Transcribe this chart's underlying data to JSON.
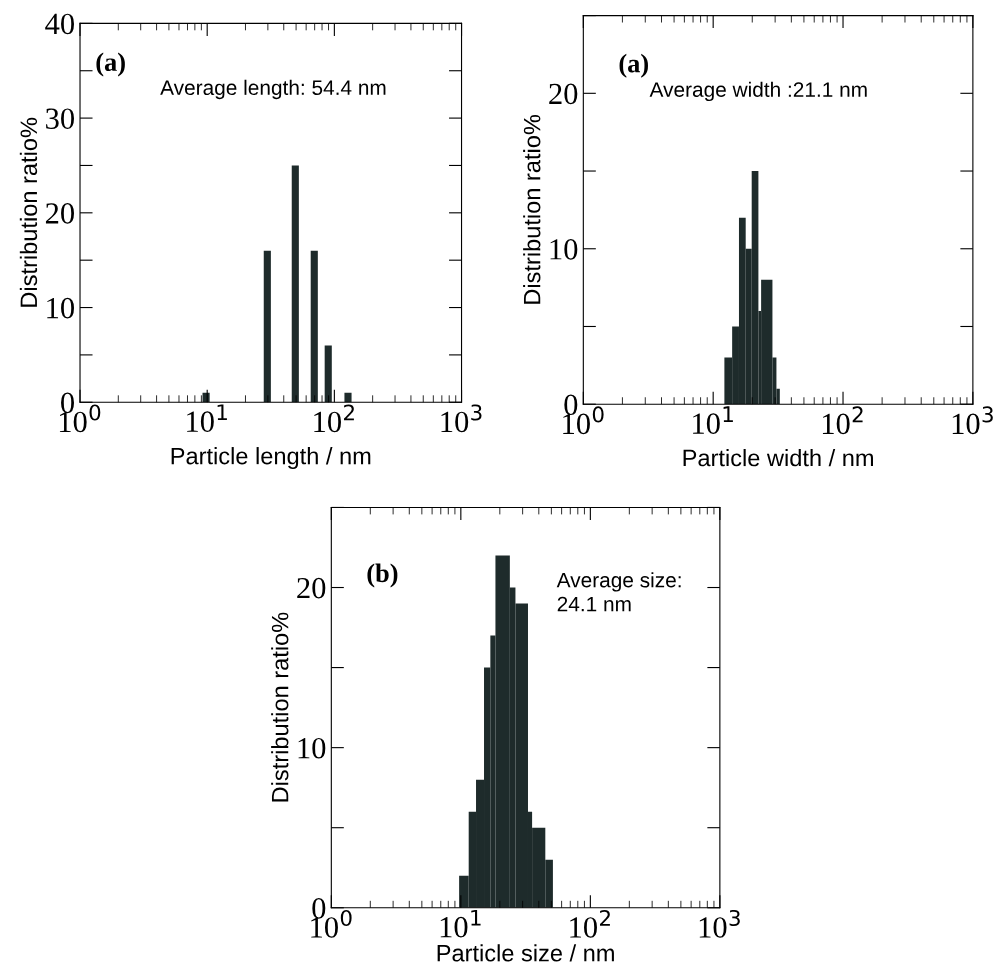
{
  "chart_data": [
    {
      "type": "bar",
      "x": [
        9.8,
        29.7,
        49.3,
        69.5,
        89.5,
        128
      ],
      "values": [
        1,
        16,
        25,
        16,
        6,
        1
      ],
      "color": "#1e2b2b",
      "xlabel": "Particle length / nm",
      "ylabel": "Distribution ratio%",
      "log": "x",
      "xlim": [
        1,
        1000
      ],
      "ylim": [
        0,
        40
      ],
      "xticks": [
        {
          "value": 1,
          "label": "10$^{0}$"
        },
        {
          "value": 10,
          "label": "10$^{1}$"
        },
        {
          "value": 100,
          "label": "10$^{2}$"
        },
        {
          "value": 1000,
          "label": "10$^{3}$"
        }
      ],
      "yticks": [
        0,
        {
          "value": 5,
          "label": null
        },
        10,
        {
          "value": 15,
          "label": null
        },
        20,
        {
          "value": 25,
          "label": null
        },
        30,
        {
          "value": 35,
          "label": null
        },
        40
      ],
      "annotations": [
        "(a)",
        "Average length: 54.4 nm"
      ],
      "grid": false
    },
    {
      "type": "histogram",
      "bins": [
        12.2,
        14.0,
        15.8,
        17.8,
        19.8,
        22.3,
        23.4,
        28.6,
        30.7,
        32.6
      ],
      "values": [
        3,
        5,
        12,
        10,
        15,
        6,
        8,
        3,
        1
      ],
      "color": "#1e2b2b",
      "xlabel": "Particle width / nm",
      "ylabel": "Distribution ratio%",
      "log": "x",
      "xlim": [
        1,
        1000
      ],
      "ylim": [
        0,
        25
      ],
      "xticks": [
        {
          "value": 1,
          "label": "10$^{0}$"
        },
        {
          "value": 10,
          "label": "10$^{1}$"
        },
        {
          "value": 100,
          "label": "10$^{2}$"
        },
        {
          "value": 1000,
          "label": "10$^{3}$"
        }
      ],
      "yticks": [
        0,
        {
          "value": 5,
          "label": null
        },
        10,
        {
          "value": 15,
          "label": null
        },
        20,
        {
          "value": 25,
          "label": null
        }
      ],
      "annotations": [
        "(a)",
        "Average width :21.1 nm"
      ],
      "grid": false
    },
    {
      "type": "histogram",
      "bins": [
        9.7,
        11.5,
        13.1,
        15.1,
        16.9,
        18.5,
        23.9,
        26.4,
        33.0,
        35.5,
        44.9,
        51.4
      ],
      "values": [
        2,
        6,
        8,
        15,
        17,
        22,
        20,
        19,
        6,
        5,
        3
      ],
      "color": "#1e2b2b",
      "xlabel": "Particle size / nm",
      "ylabel": "Distribution ratio%",
      "log": "x",
      "xlim": [
        1,
        1000
      ],
      "ylim": [
        0,
        25
      ],
      "xticks": [
        {
          "value": 1,
          "label": "10$^{0}$"
        },
        {
          "value": 10,
          "label": "10$^{1}$"
        },
        {
          "value": 100,
          "label": "10$^{2}$"
        },
        {
          "value": 1000,
          "label": "10$^{3}$"
        }
      ],
      "yticks": [
        0,
        {
          "value": 5,
          "label": null
        },
        10,
        {
          "value": 15,
          "label": null
        },
        20,
        {
          "value": 25,
          "label": null
        }
      ],
      "annotations": [
        "(b)",
        "Average size:\n24.1 nm"
      ],
      "grid": false
    }
  ]
}
